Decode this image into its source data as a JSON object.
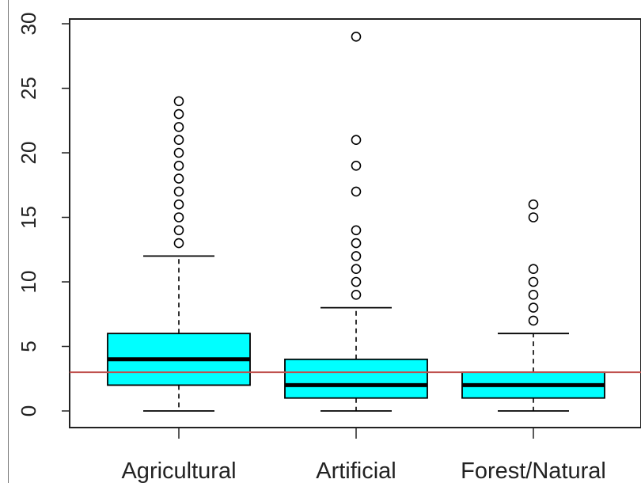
{
  "chart_data": {
    "type": "boxplot",
    "title": "",
    "xlabel": "",
    "ylabel": "",
    "ylim": [
      -1.3,
      30.2
    ],
    "yticks": [
      0,
      5,
      10,
      15,
      20,
      25,
      30
    ],
    "ytick_labels": [
      "0",
      "5",
      "10",
      "15",
      "20",
      "25",
      "30"
    ],
    "categories": [
      "Agricultural",
      "Artificial",
      "Forest/Natural"
    ],
    "boxes": [
      {
        "category": "Agricultural",
        "whisker_low": 0,
        "q1": 2,
        "median": 4,
        "q3": 6,
        "whisker_high": 12,
        "outliers": [
          13,
          14,
          15,
          16,
          17,
          18,
          19,
          20,
          21,
          22,
          23,
          24
        ]
      },
      {
        "category": "Artificial",
        "whisker_low": 0,
        "q1": 1,
        "median": 2,
        "q3": 4,
        "whisker_high": 8,
        "outliers": [
          9,
          10,
          11,
          12,
          13,
          14,
          17,
          19,
          21,
          29
        ]
      },
      {
        "category": "Forest/Natural",
        "whisker_low": 0,
        "q1": 1,
        "median": 2,
        "q3": 3,
        "whisker_high": 6,
        "outliers": [
          7,
          8,
          9,
          10,
          11,
          15,
          16
        ]
      }
    ],
    "reference_line": {
      "y": 3,
      "color": "#c0504d"
    },
    "box_fill": "#00ffff",
    "grid": false,
    "legend": "none"
  }
}
